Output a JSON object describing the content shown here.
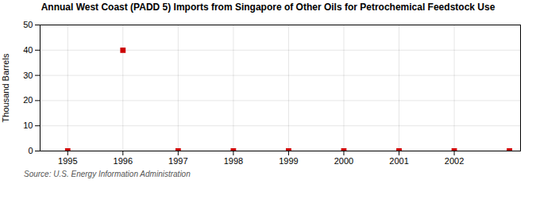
{
  "chart_data": {
    "type": "scatter",
    "title": "Annual West Coast (PADD 5) Imports from Singapore of Other Oils for Petrochemical Feedstock Use",
    "ylabel": "Thousand Barrels",
    "source": "Source: U.S. Energy Information Administration",
    "x": [
      1995,
      1996,
      1997,
      1998,
      1999,
      2000,
      2001,
      2002,
      2003
    ],
    "values": [
      0,
      40,
      0,
      0,
      0,
      0,
      0,
      0,
      0
    ],
    "color": "#cc0000",
    "marker": "square",
    "xlim": [
      1994.5,
      2003.2
    ],
    "ylim": [
      0,
      50
    ],
    "xticks": [
      1995,
      1996,
      1997,
      1998,
      1999,
      2000,
      2001,
      2002
    ],
    "yticks": [
      0,
      10,
      20,
      30,
      40,
      50
    ],
    "grid": true
  }
}
